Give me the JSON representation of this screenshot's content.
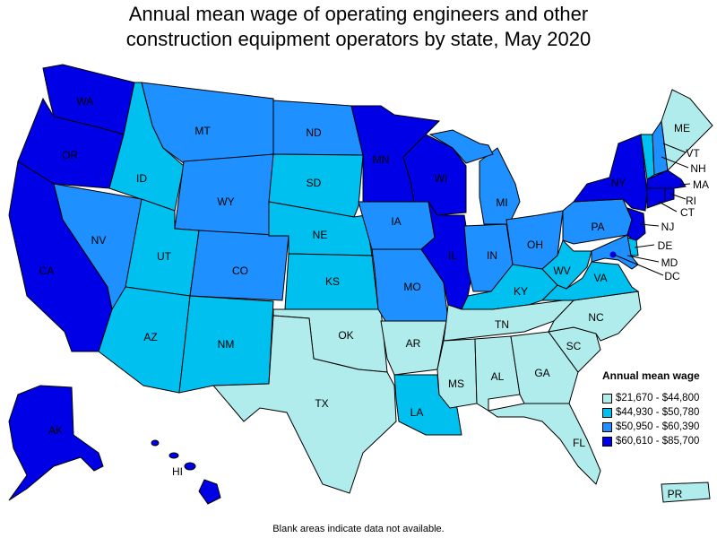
{
  "title_line1": "Annual mean wage of operating engineers and other",
  "title_line2": "construction equipment operators by state, May 2020",
  "footnote": "Blank areas indicate data not available.",
  "legend": {
    "title": "Annual mean wage",
    "items": [
      {
        "label": "$21,670 - $44,800",
        "color": "#b0ecec"
      },
      {
        "label": "$44,930 - $50,780",
        "color": "#00c0f0"
      },
      {
        "label": "$50,950 - $60,390",
        "color": "#1e90ff"
      },
      {
        "label": "$60,610 - $85,700",
        "color": "#0000e6"
      }
    ]
  },
  "states": {
    "WA": 3,
    "OR": 3,
    "CA": 3,
    "NV": 2,
    "ID": 1,
    "MT": 2,
    "WY": 2,
    "UT": 1,
    "CO": 2,
    "AZ": 1,
    "NM": 1,
    "ND": 2,
    "SD": 1,
    "NE": 1,
    "KS": 1,
    "OK": 0,
    "TX": 0,
    "MN": 3,
    "IA": 2,
    "MO": 2,
    "AR": 0,
    "LA": 1,
    "WI": 3,
    "IL": 3,
    "MI": 2,
    "IN": 2,
    "OH": 2,
    "KY": 1,
    "TN": 0,
    "MS": 0,
    "AL": 0,
    "GA": 0,
    "FL": 0,
    "SC": 0,
    "NC": 0,
    "VA": 1,
    "WV": 1,
    "PA": 2,
    "NY": 3,
    "NJ": 3,
    "DE": 1,
    "MD": 2,
    "DC": 3,
    "CT": 3,
    "RI": 3,
    "MA": 3,
    "VT": 1,
    "NH": 2,
    "ME": 0,
    "AK": 3,
    "HI": 3,
    "PR": 0
  },
  "labels": {
    "WA": "WA",
    "OR": "OR",
    "CA": "CA",
    "NV": "NV",
    "ID": "ID",
    "MT": "MT",
    "WY": "WY",
    "UT": "UT",
    "CO": "CO",
    "AZ": "AZ",
    "NM": "NM",
    "ND": "ND",
    "SD": "SD",
    "NE": "NE",
    "KS": "KS",
    "OK": "OK",
    "TX": "TX",
    "MN": "MN",
    "IA": "IA",
    "MO": "MO",
    "AR": "AR",
    "LA": "LA",
    "WI": "WI",
    "IL": "IL",
    "MI": "MI",
    "IN": "IN",
    "OH": "OH",
    "KY": "KY",
    "TN": "TN",
    "MS": "MS",
    "AL": "AL",
    "GA": "GA",
    "FL": "FL",
    "SC": "SC",
    "NC": "NC",
    "VA": "VA",
    "WV": "WV",
    "PA": "PA",
    "NY": "NY",
    "NJ": "NJ",
    "DE": "DE",
    "MD": "MD",
    "DC": "DC",
    "CT": "CT",
    "RI": "RI",
    "MA": "MA",
    "VT": "VT",
    "NH": "NH",
    "ME": "ME",
    "AK": "AK",
    "HI": "HI",
    "PR": "PR"
  }
}
